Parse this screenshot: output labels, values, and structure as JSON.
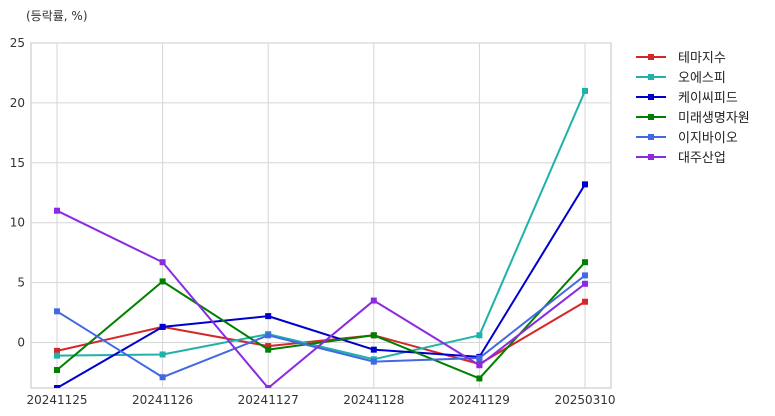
{
  "chart_data": {
    "type": "line",
    "title": "",
    "ylabel": "(등락률, %)",
    "xlabel": "",
    "categories": [
      "20241125",
      "20241126",
      "20241127",
      "20241128",
      "20241129",
      "20250310"
    ],
    "ylim": [
      -3.8,
      25
    ],
    "yticks": [
      0,
      5,
      10,
      15,
      20,
      25
    ],
    "grid": true,
    "legend_position": "outside-right",
    "series": [
      {
        "name": "테마지수",
        "color": "#d62728",
        "values": [
          -0.7,
          1.3,
          -0.3,
          0.6,
          -1.8,
          3.4
        ]
      },
      {
        "name": "오에스피",
        "color": "#20b2aa",
        "values": [
          -1.1,
          -1.0,
          0.7,
          -1.4,
          0.6,
          21.0
        ]
      },
      {
        "name": "케이씨피드",
        "color": "#0000cd",
        "values": [
          -3.8,
          1.3,
          2.2,
          -0.6,
          -1.2,
          13.2
        ]
      },
      {
        "name": "미래생명자원",
        "color": "#008000",
        "values": [
          -2.3,
          5.1,
          -0.6,
          0.6,
          -3.0,
          6.7
        ]
      },
      {
        "name": "이지바이오",
        "color": "#4169e1",
        "values": [
          2.6,
          -2.9,
          0.6,
          -1.6,
          -1.3,
          5.6
        ]
      },
      {
        "name": "대주산업",
        "color": "#8a2be2",
        "values": [
          11.0,
          6.7,
          -3.8,
          3.5,
          -1.9,
          4.9
        ]
      }
    ]
  }
}
